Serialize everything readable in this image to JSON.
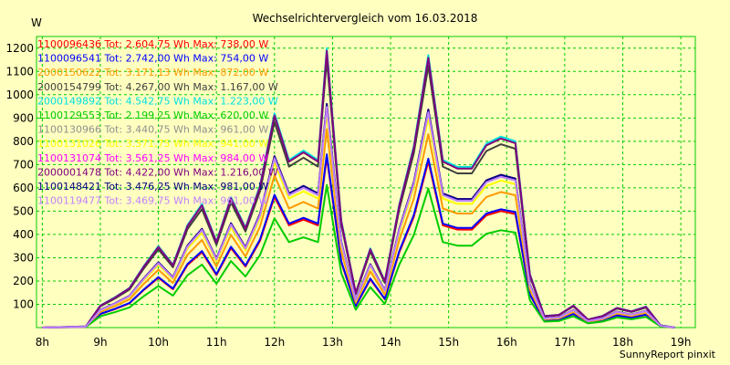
{
  "chart_data": {
    "type": "line",
    "title": "Wechselrichtervergleich vom 16.03.2018",
    "ylabel": "W",
    "footer": "SunnyReport pinxit",
    "ylim": [
      0,
      1250
    ],
    "xlim": [
      7.9,
      19.25
    ],
    "y_ticks": [
      100,
      200,
      300,
      400,
      500,
      600,
      700,
      800,
      900,
      1000,
      1100,
      1200
    ],
    "x_ticks": [
      {
        "value": 8,
        "label": "8h"
      },
      {
        "value": 9,
        "label": "9h"
      },
      {
        "value": 10,
        "label": "10h"
      },
      {
        "value": 11,
        "label": "11h"
      },
      {
        "value": 12,
        "label": "12h"
      },
      {
        "value": 13,
        "label": "13h"
      },
      {
        "value": 14,
        "label": "14h"
      },
      {
        "value": 15,
        "label": "15h"
      },
      {
        "value": 16,
        "label": "16h"
      },
      {
        "value": 17,
        "label": "17h"
      },
      {
        "value": 18,
        "label": "18h"
      },
      {
        "value": 19,
        "label": "19h"
      }
    ],
    "grid": true,
    "legend_position": "top-left",
    "x": [
      8.0,
      8.75,
      9.0,
      9.25,
      9.5,
      9.75,
      10.0,
      10.25,
      10.5,
      10.75,
      11.0,
      11.25,
      11.5,
      11.75,
      12.0,
      12.25,
      12.5,
      12.75,
      12.9,
      13.15,
      13.4,
      13.65,
      13.9,
      14.15,
      14.4,
      14.65,
      14.9,
      15.15,
      15.4,
      15.65,
      15.9,
      16.15,
      16.4,
      16.65,
      16.9,
      17.15,
      17.4,
      17.65,
      17.9,
      18.15,
      18.4,
      18.65,
      18.9
    ],
    "series": [
      {
        "name": "1100096436 Tot: 2.604,75 Wh Max: 738,00 W",
        "color": "#ff0000",
        "scale": 0.61
      },
      {
        "name": "1100096541 Tot: 2.742,00 Wh Max: 754,00 W",
        "color": "#0000ff",
        "scale": 0.62
      },
      {
        "name": "2000150622 Tot: 3.171,13 Wh Max: 872,00 W",
        "color": "#ff9900",
        "scale": 0.71
      },
      {
        "name": "2000154799 Tot: 4.267,00 Wh Max: 1.167,00 W",
        "color": "#404040",
        "scale": 0.96
      },
      {
        "name": "2000149892 Tot: 4.542,75 Wh Max: 1.223,00 W",
        "color": "#00e0e0",
        "scale": 1.0
      },
      {
        "name": "1100129553 Tot: 2.199,25 Wh Max: 620,00 W",
        "color": "#00cc00",
        "scale": 0.51
      },
      {
        "name": "1100130966 Tot: 3.440,75 Wh Max: 961,00 W",
        "color": "#909090",
        "scale": 0.79
      },
      {
        "name": "1100131026 Tot: 3.371,75 Wh Max: 941,00 W",
        "color": "#ffff00",
        "scale": 0.77
      },
      {
        "name": "1100131074 Tot: 3.561,25 Wh Max: 984,00 W",
        "color": "#ff00ff",
        "scale": 0.8
      },
      {
        "name": "2000001478 Tot: 4.422,00 Wh Max: 1.216,00 W",
        "color": "#800080",
        "scale": 0.99
      },
      {
        "name": "1100148421 Tot: 3.476,25 Wh Max: 981,00 W",
        "color": "#000080",
        "scale": 0.8
      },
      {
        "name": "1100119477 Tot: 3.469,75 Wh Max: 961,00 W",
        "color": "#c080ff",
        "scale": 0.79
      }
    ],
    "base_profile": [
      0,
      5,
      95,
      130,
      170,
      265,
      350,
      270,
      440,
      530,
      370,
      560,
      430,
      610,
      920,
      720,
      760,
      720,
      1200,
      460,
      150,
      340,
      200,
      530,
      780,
      1170,
      720,
      690,
      690,
      790,
      820,
      800,
      230,
      50,
      55,
      95,
      35,
      50,
      85,
      70,
      90,
      10,
      0
    ]
  }
}
